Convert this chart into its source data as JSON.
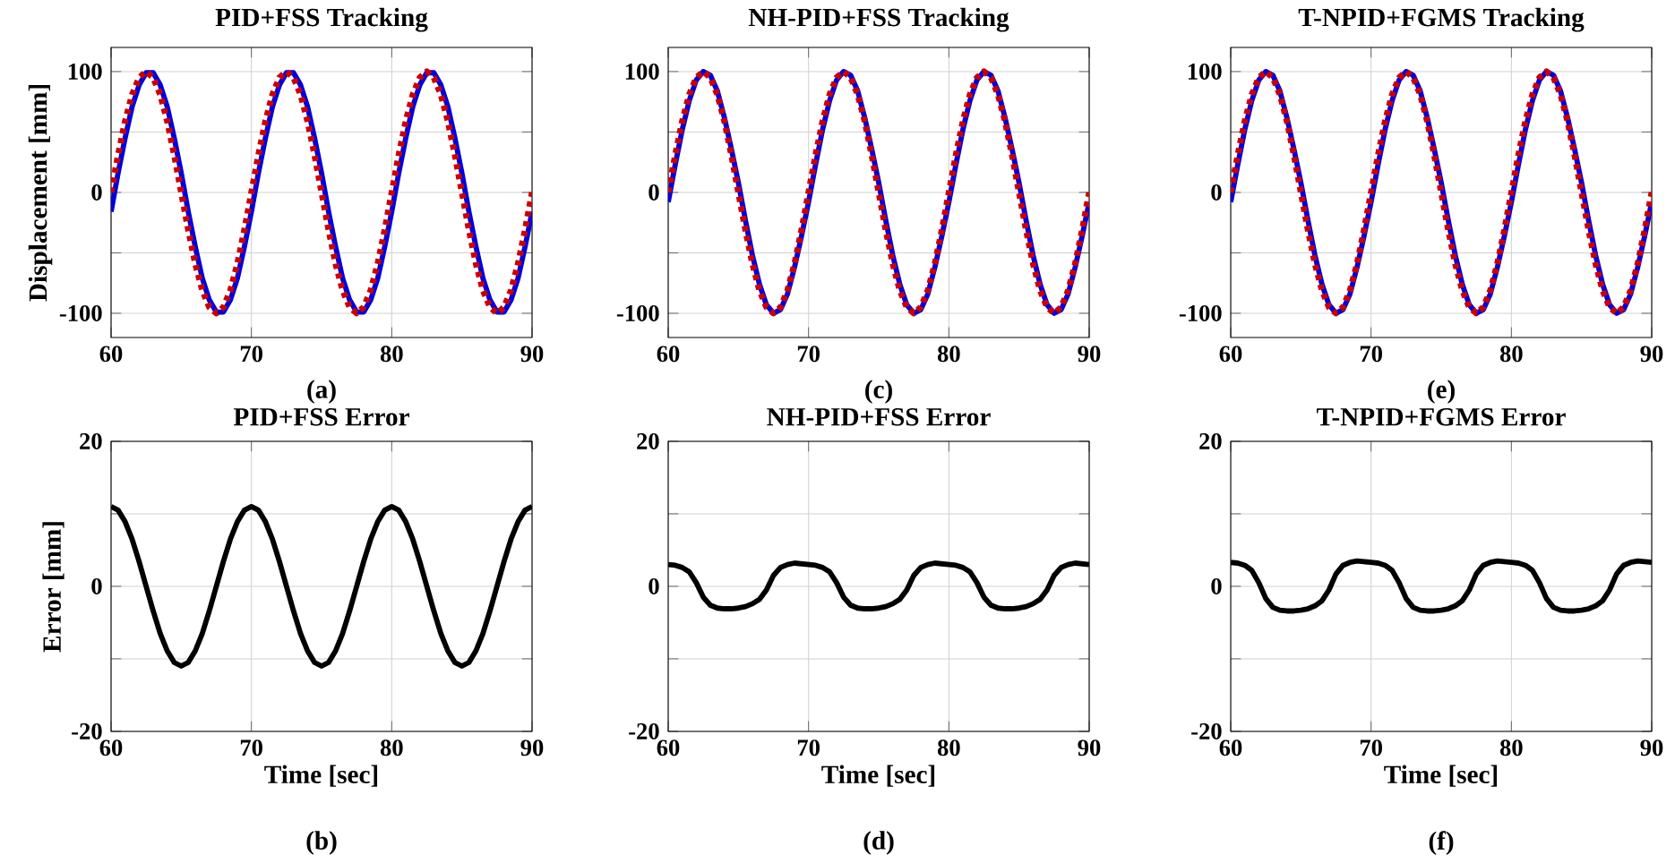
{
  "chart_data": [
    {
      "type": "line",
      "title": "PID+FSS Tracking",
      "ylabel": "Displacement [mm]",
      "annotations": [
        "(a)"
      ],
      "xlim": [
        60,
        90
      ],
      "xticks": [
        60,
        70,
        80,
        90
      ],
      "ylim": [
        -120,
        120
      ],
      "yticks": [
        -100,
        {
          "value": -50,
          "label": null
        },
        0,
        {
          "value": 50,
          "label": null
        },
        100
      ],
      "grid": true,
      "x": [
        60,
        60.5,
        61,
        61.5,
        62,
        62.5,
        63,
        63.5,
        64,
        64.5,
        65,
        65.5,
        66,
        66.5,
        67,
        67.5,
        68,
        68.5,
        69,
        69.5,
        70,
        70.5,
        71,
        71.5,
        72,
        72.5,
        73,
        73.5,
        74,
        74.5,
        75,
        75.5,
        76,
        76.5,
        77,
        77.5,
        78,
        78.5,
        79,
        79.5,
        80,
        80.5,
        81,
        81.5,
        82,
        82.5,
        83,
        83.5,
        84,
        84.5,
        85,
        85.5,
        86,
        86.5,
        87,
        87.5,
        88,
        88.5,
        89,
        89.5,
        90
      ],
      "series": [
        {
          "color": "#0000dd",
          "line_style": "solid",
          "values": [
            -16,
            16,
            45,
            71,
            89,
            99,
            99,
            89,
            71,
            45,
            16,
            -16,
            -45,
            -71,
            -89,
            -99,
            -99,
            -89,
            -71,
            -45,
            -16,
            16,
            45,
            71,
            89,
            99,
            99,
            89,
            71,
            45,
            16,
            -16,
            -45,
            -71,
            -89,
            -99,
            -99,
            -89,
            -71,
            -45,
            -16,
            16,
            45,
            71,
            89,
            99,
            99,
            89,
            71,
            45,
            16,
            -16,
            -45,
            -71,
            -89,
            -99,
            -99,
            -89,
            -71,
            -45,
            -16
          ]
        },
        {
          "color": "#cc0000",
          "line_style": "dotted",
          "values": [
            0,
            31,
            59,
            81,
            95,
            100,
            95,
            81,
            59,
            31,
            0,
            -31,
            -59,
            -81,
            -95,
            -100,
            -95,
            -81,
            -59,
            -31,
            0,
            31,
            59,
            81,
            95,
            100,
            95,
            81,
            59,
            31,
            0,
            -31,
            -59,
            -81,
            -95,
            -100,
            -95,
            -81,
            -59,
            -31,
            0,
            31,
            59,
            81,
            95,
            100,
            95,
            81,
            59,
            31,
            0,
            -31,
            -59,
            -81,
            -95,
            -100,
            -95,
            -81,
            -59,
            -31,
            0
          ]
        }
      ]
    },
    {
      "type": "line",
      "title": "NH-PID+FSS Tracking",
      "annotations": [
        "(c)"
      ],
      "xlim": [
        60,
        90
      ],
      "xticks": [
        60,
        70,
        80,
        90
      ],
      "ylim": [
        -120,
        120
      ],
      "yticks": [
        -100,
        {
          "value": -50,
          "label": null
        },
        0,
        {
          "value": 50,
          "label": null
        },
        100
      ],
      "grid": true,
      "x": [
        60,
        60.5,
        61,
        61.5,
        62,
        62.5,
        63,
        63.5,
        64,
        64.5,
        65,
        65.5,
        66,
        66.5,
        67,
        67.5,
        68,
        68.5,
        69,
        69.5,
        70,
        70.5,
        71,
        71.5,
        72,
        72.5,
        73,
        73.5,
        74,
        74.5,
        75,
        75.5,
        76,
        76.5,
        77,
        77.5,
        78,
        78.5,
        79,
        79.5,
        80,
        80.5,
        81,
        81.5,
        82,
        82.5,
        83,
        83.5,
        84,
        84.5,
        85,
        85.5,
        86,
        86.5,
        87,
        87.5,
        88,
        88.5,
        89,
        89.5,
        90
      ],
      "series": [
        {
          "color": "#0000dd",
          "line_style": "solid",
          "values": [
            -8,
            23,
            52,
            76,
            93,
            100,
            97,
            84,
            62,
            36,
            8,
            -23,
            -52,
            -76,
            -93,
            -100,
            -97,
            -84,
            -62,
            -36,
            -8,
            23,
            52,
            76,
            93,
            100,
            97,
            84,
            62,
            36,
            8,
            -23,
            -52,
            -76,
            -93,
            -100,
            -97,
            -84,
            -62,
            -36,
            -8,
            23,
            52,
            76,
            93,
            100,
            97,
            84,
            62,
            36,
            8,
            -23,
            -52,
            -76,
            -93,
            -100,
            -97,
            -84,
            -62,
            -36,
            -8
          ]
        },
        {
          "color": "#cc0000",
          "line_style": "dotted",
          "values": [
            0,
            31,
            59,
            81,
            95,
            100,
            95,
            81,
            59,
            31,
            0,
            -31,
            -59,
            -81,
            -95,
            -100,
            -95,
            -81,
            -59,
            -31,
            0,
            31,
            59,
            81,
            95,
            100,
            95,
            81,
            59,
            31,
            0,
            -31,
            -59,
            -81,
            -95,
            -100,
            -95,
            -81,
            -59,
            -31,
            0,
            31,
            59,
            81,
            95,
            100,
            95,
            81,
            59,
            31,
            0,
            -31,
            -59,
            -81,
            -95,
            -100,
            -95,
            -81,
            -59,
            -31,
            0
          ]
        }
      ]
    },
    {
      "type": "line",
      "title": "T-NPID+FGMS Tracking",
      "annotations": [
        "(e)"
      ],
      "xlim": [
        60,
        90
      ],
      "xticks": [
        60,
        70,
        80,
        90
      ],
      "ylim": [
        -120,
        120
      ],
      "yticks": [
        -100,
        {
          "value": -50,
          "label": null
        },
        0,
        {
          "value": 50,
          "label": null
        },
        100
      ],
      "grid": true,
      "x": [
        60,
        60.5,
        61,
        61.5,
        62,
        62.5,
        63,
        63.5,
        64,
        64.5,
        65,
        65.5,
        66,
        66.5,
        67,
        67.5,
        68,
        68.5,
        69,
        69.5,
        70,
        70.5,
        71,
        71.5,
        72,
        72.5,
        73,
        73.5,
        74,
        74.5,
        75,
        75.5,
        76,
        76.5,
        77,
        77.5,
        78,
        78.5,
        79,
        79.5,
        80,
        80.5,
        81,
        81.5,
        82,
        82.5,
        83,
        83.5,
        84,
        84.5,
        85,
        85.5,
        86,
        86.5,
        87,
        87.5,
        88,
        88.5,
        89,
        89.5,
        90
      ],
      "series": [
        {
          "color": "#0000dd",
          "line_style": "solid",
          "values": [
            -8,
            23,
            52,
            76,
            93,
            100,
            97,
            84,
            62,
            36,
            8,
            -23,
            -52,
            -76,
            -93,
            -100,
            -97,
            -84,
            -62,
            -36,
            -8,
            23,
            52,
            76,
            93,
            100,
            97,
            84,
            62,
            36,
            8,
            -23,
            -52,
            -76,
            -93,
            -100,
            -97,
            -84,
            -62,
            -36,
            -8,
            23,
            52,
            76,
            93,
            100,
            97,
            84,
            62,
            36,
            8,
            -23,
            -52,
            -76,
            -93,
            -100,
            -97,
            -84,
            -62,
            -36,
            -8
          ]
        },
        {
          "color": "#cc0000",
          "line_style": "dotted",
          "values": [
            0,
            31,
            59,
            81,
            95,
            100,
            95,
            81,
            59,
            31,
            0,
            -31,
            -59,
            -81,
            -95,
            -100,
            -95,
            -81,
            -59,
            -31,
            0,
            31,
            59,
            81,
            95,
            100,
            95,
            81,
            59,
            31,
            0,
            -31,
            -59,
            -81,
            -95,
            -100,
            -95,
            -81,
            -59,
            -31,
            0,
            31,
            59,
            81,
            95,
            100,
            95,
            81,
            59,
            31,
            0,
            -31,
            -59,
            -81,
            -95,
            -100,
            -95,
            -81,
            -59,
            -31,
            0
          ]
        }
      ]
    },
    {
      "type": "line",
      "title": "PID+FSS Error",
      "xlabel": "Time [sec]",
      "ylabel": "Error [mm]",
      "annotations": [
        "(b)"
      ],
      "xlim": [
        60,
        90
      ],
      "xticks": [
        60,
        70,
        80,
        90
      ],
      "ylim": [
        -20,
        20
      ],
      "yticks": [
        -20,
        {
          "value": -10,
          "label": null
        },
        0,
        {
          "value": 10,
          "label": null
        },
        20
      ],
      "grid": true,
      "x": [
        60,
        60.5,
        61,
        61.5,
        62,
        62.5,
        63,
        63.5,
        64,
        64.5,
        65,
        65.5,
        66,
        66.5,
        67,
        67.5,
        68,
        68.5,
        69,
        69.5,
        70,
        70.5,
        71,
        71.5,
        72,
        72.5,
        73,
        73.5,
        74,
        74.5,
        75,
        75.5,
        76,
        76.5,
        77,
        77.5,
        78,
        78.5,
        79,
        79.5,
        80,
        80.5,
        81,
        81.5,
        82,
        82.5,
        83,
        83.5,
        84,
        84.5,
        85,
        85.5,
        86,
        86.5,
        87,
        87.5,
        88,
        88.5,
        89,
        89.5,
        90
      ],
      "series": [
        {
          "color": "#000000",
          "line_style": "solid",
          "values": [
            11,
            10.5,
            8.9,
            6.5,
            3.4,
            0,
            -3.4,
            -6.5,
            -8.9,
            -10.5,
            -11,
            -10.5,
            -8.9,
            -6.5,
            -3.4,
            0,
            3.4,
            6.5,
            8.9,
            10.5,
            11,
            10.5,
            8.9,
            6.5,
            3.4,
            0,
            -3.4,
            -6.5,
            -8.9,
            -10.5,
            -11,
            -10.5,
            -8.9,
            -6.5,
            -3.4,
            0,
            3.4,
            6.5,
            8.9,
            10.5,
            11,
            10.5,
            8.9,
            6.5,
            3.4,
            0,
            -3.4,
            -6.5,
            -8.9,
            -10.5,
            -11,
            -10.5,
            -8.9,
            -6.5,
            -3.4,
            0,
            3.4,
            6.5,
            8.9,
            10.5,
            11
          ]
        }
      ]
    },
    {
      "type": "line",
      "title": "NH-PID+FSS Error",
      "xlabel": "Time [sec]",
      "annotations": [
        "(d)"
      ],
      "xlim": [
        60,
        90
      ],
      "xticks": [
        60,
        70,
        80,
        90
      ],
      "ylim": [
        -20,
        20
      ],
      "yticks": [
        -20,
        {
          "value": -10,
          "label": null
        },
        0,
        {
          "value": 10,
          "label": null
        },
        20
      ],
      "grid": true,
      "x": [
        60,
        60.5,
        61,
        61.5,
        62,
        62.5,
        63,
        63.5,
        64,
        64.5,
        65,
        65.5,
        66,
        66.5,
        67,
        67.5,
        68,
        68.5,
        69,
        69.5,
        70,
        70.5,
        71,
        71.5,
        72,
        72.5,
        73,
        73.5,
        74,
        74.5,
        75,
        75.5,
        76,
        76.5,
        77,
        77.5,
        78,
        78.5,
        79,
        79.5,
        80,
        80.5,
        81,
        81.5,
        82,
        82.5,
        83,
        83.5,
        84,
        84.5,
        85,
        85.5,
        86,
        86.5,
        87,
        87.5,
        88,
        88.5,
        89,
        89.5,
        90
      ],
      "series": [
        {
          "color": "#000000",
          "line_style": "solid",
          "values": [
            3,
            2.9,
            2.6,
            2,
            0.5,
            -1.5,
            -2.6,
            -3,
            -3.1,
            -3.1,
            -3,
            -2.8,
            -2.4,
            -1.8,
            -0.5,
            1.5,
            2.6,
            3,
            3.2,
            3.1,
            3,
            2.9,
            2.6,
            2,
            0.5,
            -1.5,
            -2.6,
            -3,
            -3.1,
            -3.1,
            -3,
            -2.8,
            -2.4,
            -1.8,
            -0.5,
            1.5,
            2.6,
            3,
            3.2,
            3.1,
            3,
            2.9,
            2.6,
            2,
            0.5,
            -1.5,
            -2.6,
            -3,
            -3.1,
            -3.1,
            -3,
            -2.8,
            -2.4,
            -1.8,
            -0.5,
            1.5,
            2.6,
            3,
            3.2,
            3.1,
            3
          ]
        }
      ]
    },
    {
      "type": "line",
      "title": "T-NPID+FGMS Error",
      "xlabel": "Time [sec]",
      "annotations": [
        "(f)"
      ],
      "xlim": [
        60,
        90
      ],
      "xticks": [
        60,
        70,
        80,
        90
      ],
      "ylim": [
        -20,
        20
      ],
      "yticks": [
        -20,
        {
          "value": -10,
          "label": null
        },
        0,
        {
          "value": 10,
          "label": null
        },
        20
      ],
      "grid": true,
      "x": [
        60,
        60.5,
        61,
        61.5,
        62,
        62.5,
        63,
        63.5,
        64,
        64.5,
        65,
        65.5,
        66,
        66.5,
        67,
        67.5,
        68,
        68.5,
        69,
        69.5,
        70,
        70.5,
        71,
        71.5,
        72,
        72.5,
        73,
        73.5,
        74,
        74.5,
        75,
        75.5,
        76,
        76.5,
        77,
        77.5,
        78,
        78.5,
        79,
        79.5,
        80,
        80.5,
        81,
        81.5,
        82,
        82.5,
        83,
        83.5,
        84,
        84.5,
        85,
        85.5,
        86,
        86.5,
        87,
        87.5,
        88,
        88.5,
        89,
        89.5,
        90
      ],
      "series": [
        {
          "color": "#000000",
          "line_style": "solid",
          "values": [
            3.3,
            3.2,
            2.9,
            2.2,
            0.5,
            -1.7,
            -2.9,
            -3.3,
            -3.4,
            -3.4,
            -3.3,
            -3.1,
            -2.7,
            -2,
            -0.5,
            1.7,
            2.9,
            3.3,
            3.5,
            3.4,
            3.3,
            3.2,
            2.9,
            2.2,
            0.5,
            -1.7,
            -2.9,
            -3.3,
            -3.4,
            -3.4,
            -3.3,
            -3.1,
            -2.7,
            -2,
            -0.5,
            1.7,
            2.9,
            3.3,
            3.5,
            3.4,
            3.3,
            3.2,
            2.9,
            2.2,
            0.5,
            -1.7,
            -2.9,
            -3.3,
            -3.4,
            -3.4,
            -3.3,
            -3.1,
            -2.7,
            -2,
            -0.5,
            1.7,
            2.9,
            3.3,
            3.5,
            3.4,
            3.3
          ]
        }
      ]
    }
  ]
}
